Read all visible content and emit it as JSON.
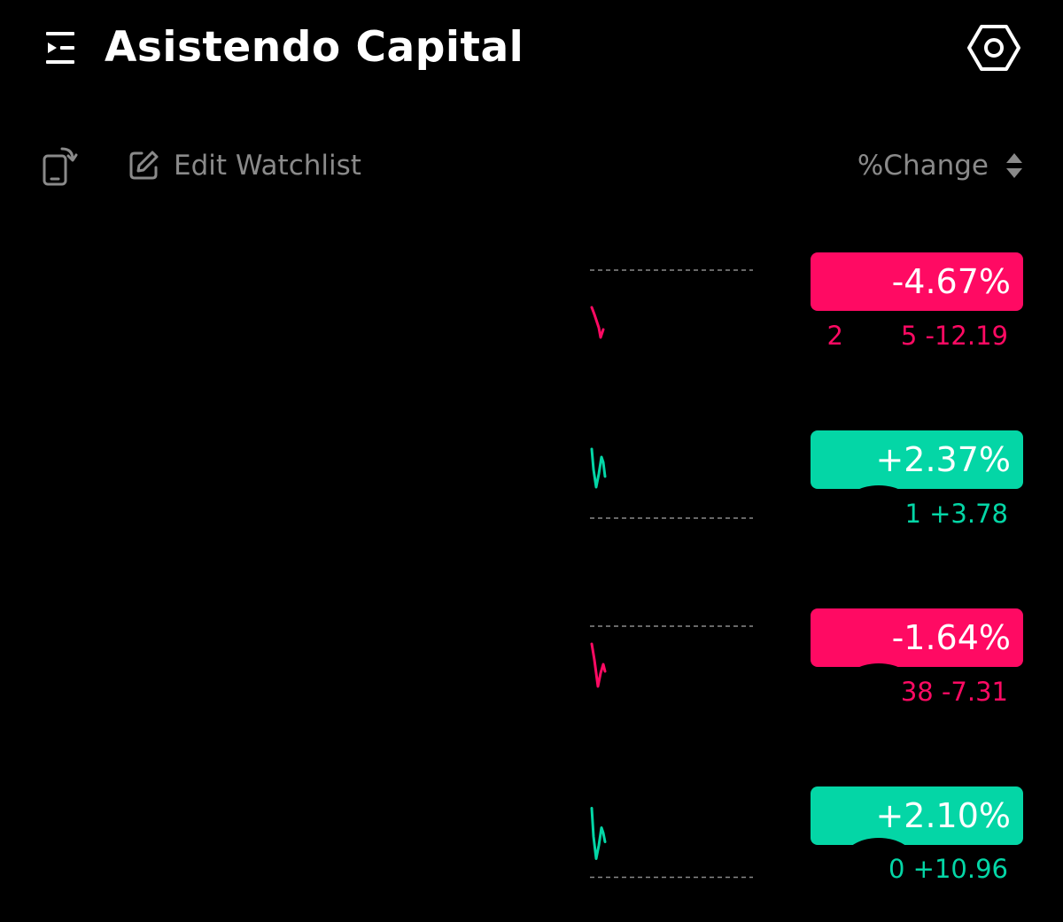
{
  "header": {
    "title": "Asistendo Capital",
    "menu_icon": "menu-collapse-icon",
    "settings_icon": "settings-hexagon-icon"
  },
  "toolbar": {
    "rotate_icon": "screen-rotate-icon",
    "edit_icon": "edit-icon",
    "edit_label": "Edit Watchlist",
    "sort_label": "%Change",
    "sort_icon": "sort-updown-icon"
  },
  "colors": {
    "down": "#ff0a63",
    "up": "#04d6a6",
    "muted": "#8a8a8a",
    "background": "#000000"
  },
  "watchlist": [
    {
      "change_pct": "-4.67%",
      "sub_left": "2",
      "sub_right": "5 -12.19",
      "direction": "down"
    },
    {
      "change_pct": "+2.37%",
      "sub_left": "",
      "sub_right": "1 +3.78",
      "direction": "up"
    },
    {
      "change_pct": "-1.64%",
      "sub_left": "",
      "sub_right": "38 -7.31",
      "direction": "down"
    },
    {
      "change_pct": "+2.10%",
      "sub_left": "",
      "sub_right": "0 +10.96",
      "direction": "up"
    }
  ]
}
